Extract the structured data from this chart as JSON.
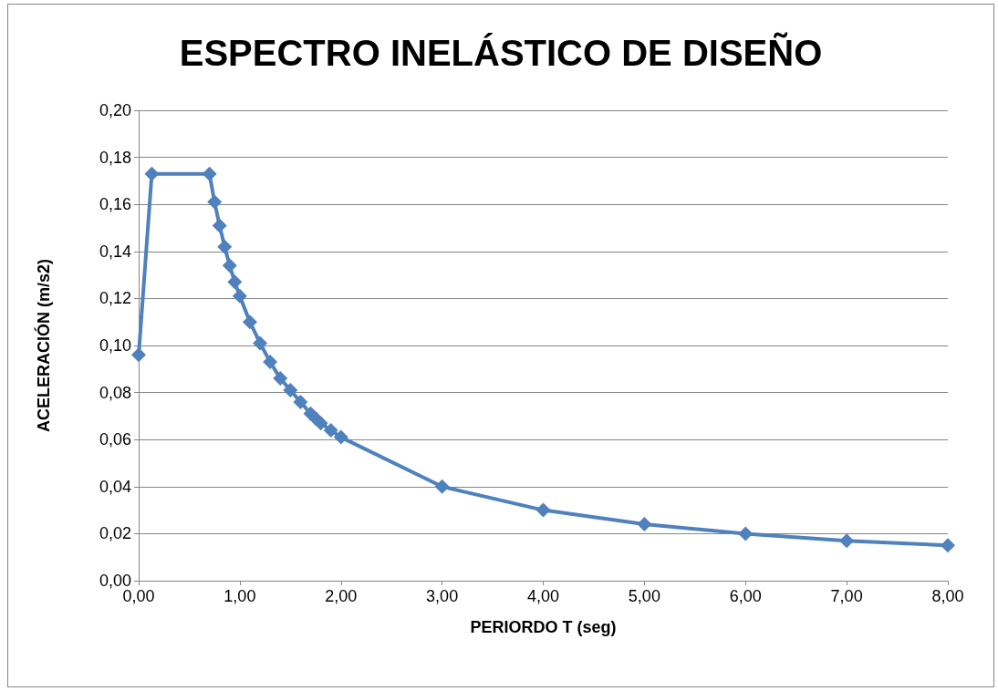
{
  "chart_data": {
    "type": "line",
    "title": "ESPECTRO INELÁSTICO DE DISEÑO",
    "xlabel": "PERIORDO T (seg)",
    "ylabel": "ACELERACIÓN (m/s2)",
    "series": [
      {
        "color": "#4f81bd",
        "x": [
          0,
          0.13,
          0.7,
          0.75,
          0.8,
          0.85,
          0.9,
          0.95,
          1.0,
          1.1,
          1.2,
          1.3,
          1.4,
          1.5,
          1.6,
          1.7,
          1.75,
          1.8,
          1.9,
          2.0,
          3,
          4,
          5,
          6,
          7,
          8
        ],
        "values": [
          0.096,
          0.173,
          0.173,
          0.161,
          0.151,
          0.142,
          0.134,
          0.127,
          0.121,
          0.11,
          0.101,
          0.093,
          0.086,
          0.081,
          0.076,
          0.071,
          0.069,
          0.067,
          0.064,
          0.061,
          0.04,
          0.03,
          0.024,
          0.02,
          0.017,
          0.015
        ]
      }
    ],
    "xlim": [
      0,
      8
    ],
    "xticks": [
      {
        "value": 0,
        "label": "0,00"
      },
      {
        "value": 1,
        "label": "1,00"
      },
      {
        "value": 2,
        "label": "2,00"
      },
      {
        "value": 3,
        "label": "3,00"
      },
      {
        "value": 4,
        "label": "4,00"
      },
      {
        "value": 5,
        "label": "5,00"
      },
      {
        "value": 6,
        "label": "6,00"
      },
      {
        "value": 7,
        "label": "7,00"
      },
      {
        "value": 8,
        "label": "8,00"
      }
    ],
    "ylim": [
      0,
      0.2
    ],
    "yticks": [
      {
        "value": 0,
        "label": "0,00"
      },
      {
        "value": 0.02,
        "label": "0,02"
      },
      {
        "value": 0.04,
        "label": "0,04"
      },
      {
        "value": 0.06,
        "label": "0,06"
      },
      {
        "value": 0.08,
        "label": "0,08"
      },
      {
        "value": 0.1,
        "label": "0,10"
      },
      {
        "value": 0.12,
        "label": "0,12"
      },
      {
        "value": 0.14,
        "label": "0,14"
      },
      {
        "value": 0.16,
        "label": "0,16"
      },
      {
        "value": 0.18,
        "label": "0,18"
      },
      {
        "value": 0.2,
        "label": "0,20"
      }
    ],
    "grid": "y",
    "marker": "diamond",
    "line_style": "solid"
  }
}
